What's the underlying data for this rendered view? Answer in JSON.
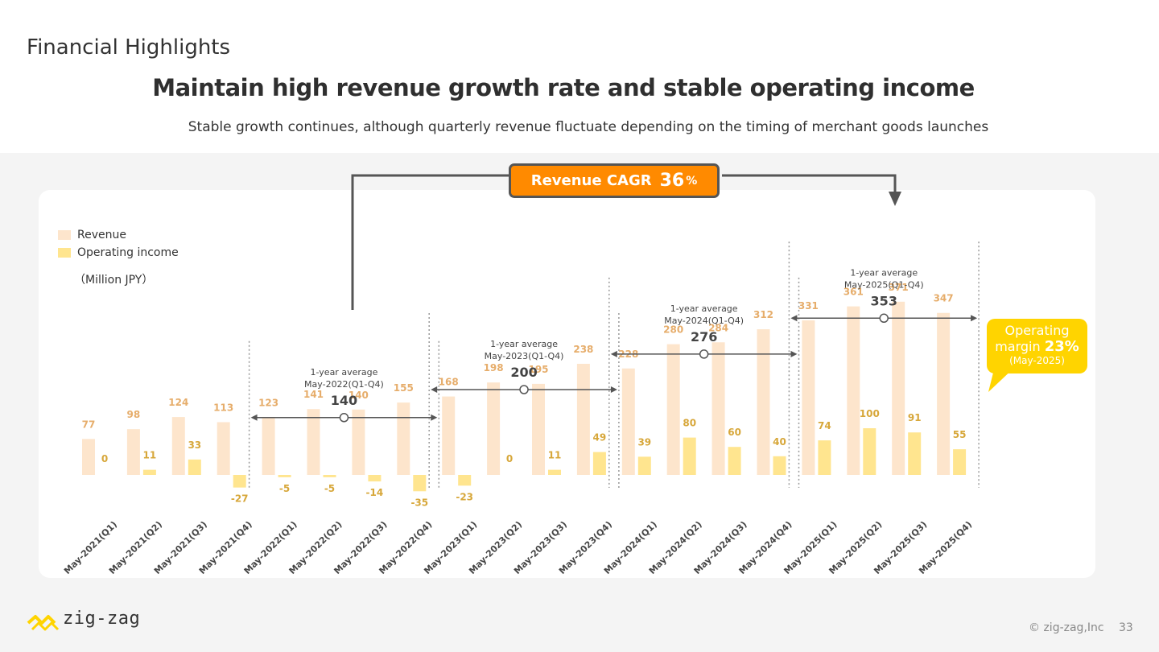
{
  "page": {
    "section_title": "Financial Highlights",
    "headline": "Maintain high revenue growth rate and stable operating income",
    "subheadline": "Stable growth continues, although quarterly revenue fluctuate depending on the timing of merchant goods launches",
    "cagr_label": "Revenue CAGR",
    "cagr_value": "36",
    "cagr_unit": "%",
    "unit_label": "（Million JPY）",
    "bubble": {
      "line1": "Operating",
      "line2_prefix": "margin",
      "line2_value": "23%",
      "line3": "(May-2025)"
    },
    "logo_text": "zig-zag",
    "copyright": "© zig-zag,Inc",
    "page_number": "33"
  },
  "colors": {
    "revenue": "#fde5cc",
    "operating_income": "#ffe58f",
    "revenue_label": "#e6ad6b",
    "oi_label": "#d7a73a",
    "accent": "#ff8a00",
    "bubble": "#ffd400"
  },
  "chart_data": {
    "type": "bar",
    "categories": [
      "May-2021(Q1)",
      "May-2021(Q2)",
      "May-2021(Q3)",
      "May-2021(Q4)",
      "May-2022(Q1)",
      "May-2022(Q2)",
      "May-2022(Q3)",
      "May-2022(Q4)",
      "May-2023(Q1)",
      "May-2023(Q2)",
      "May-2023(Q3)",
      "May-2023(Q4)",
      "May-2024(Q1)",
      "May-2024(Q2)",
      "May-2024(Q3)",
      "May-2024(Q4)",
      "May-2025(Q1)",
      "May-2025(Q2)",
      "May-2025(Q3)",
      "May-2025(Q4)"
    ],
    "series": [
      {
        "name": "Revenue",
        "values": [
          77,
          98,
          124,
          113,
          123,
          141,
          140,
          155,
          168,
          198,
          195,
          238,
          228,
          280,
          284,
          312,
          331,
          361,
          371,
          347
        ]
      },
      {
        "name": "Operating income",
        "values": [
          0,
          11,
          33,
          -27,
          -5,
          -5,
          -14,
          -35,
          -23,
          0,
          11,
          49,
          39,
          80,
          60,
          40,
          74,
          100,
          91,
          55
        ]
      }
    ],
    "annotations": [
      {
        "label_line1": "1-year average",
        "label_line2": "May-2022(Q1-Q4)",
        "value": "140",
        "average": 140,
        "from_index": 4,
        "to_index": 7
      },
      {
        "label_line1": "1-year average",
        "label_line2": "May-2023(Q1-Q4)",
        "value": "200",
        "average": 200,
        "from_index": 8,
        "to_index": 11
      },
      {
        "label_line1": "1-year average",
        "label_line2": "May-2024(Q1-Q4)",
        "value": "276",
        "average": 276,
        "from_index": 12,
        "to_index": 15
      },
      {
        "label_line1": "1-year average",
        "label_line2": "May-2025(Q1-Q4)",
        "value": "353",
        "average": 353,
        "from_index": 16,
        "to_index": 19
      }
    ],
    "legend": [
      "Revenue",
      "Operating income"
    ],
    "legend_position": "top-left",
    "grid": false
  }
}
